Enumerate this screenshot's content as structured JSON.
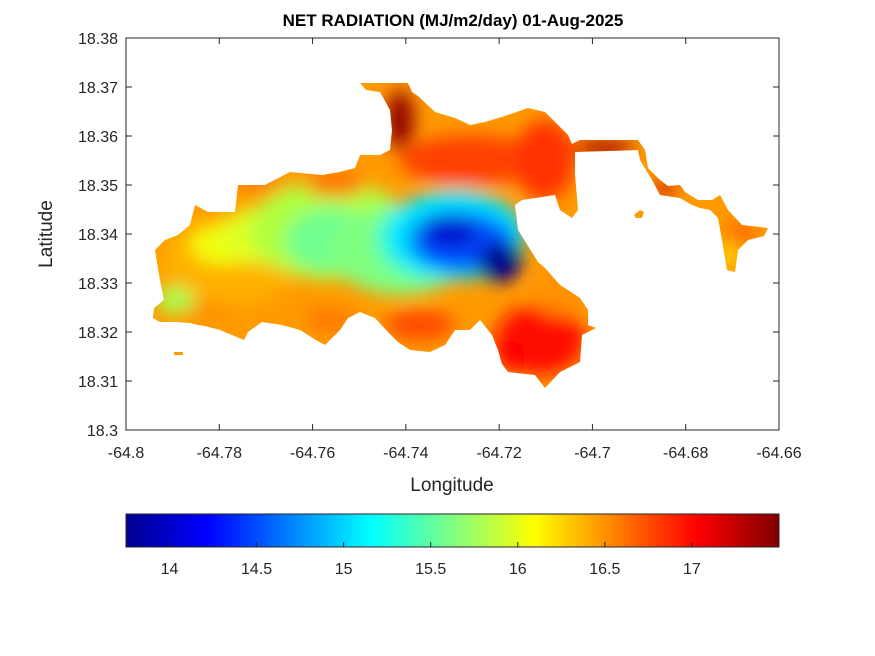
{
  "chart_data": {
    "type": "heatmap",
    "title": "NET RADIATION (MJ/m2/day) 01-Aug-2025",
    "xlabel": "Longitude",
    "ylabel": "Latitude",
    "xlim": [
      -64.8,
      -64.66
    ],
    "ylim": [
      18.3,
      18.38
    ],
    "xticks": [
      -64.8,
      -64.78,
      -64.76,
      -64.74,
      -64.72,
      -64.7,
      -64.68,
      -64.66
    ],
    "yticks": [
      18.3,
      18.31,
      18.32,
      18.33,
      18.34,
      18.35,
      18.36,
      18.37,
      18.38
    ],
    "colorbar": {
      "colormap": "jet",
      "range": [
        13.75,
        17.5
      ],
      "ticks": [
        14,
        14.5,
        15,
        15.5,
        16,
        16.5,
        17
      ],
      "placement": "bottom"
    },
    "hotspots": [
      {
        "lon": -64.72,
        "lat": 18.333,
        "value": 13.8
      },
      {
        "lon": -64.732,
        "lat": 18.341,
        "value": 14.1
      },
      {
        "lon": -64.742,
        "lat": 18.338,
        "value": 14.9
      },
      {
        "lon": -64.755,
        "lat": 18.334,
        "value": 15.3
      },
      {
        "lon": -64.763,
        "lat": 18.339,
        "value": 15.6
      },
      {
        "lon": -64.783,
        "lat": 18.331,
        "value": 15.8
      },
      {
        "lon": -64.732,
        "lat": 18.364,
        "value": 17.4
      },
      {
        "lon": -64.705,
        "lat": 18.357,
        "value": 17.5
      },
      {
        "lon": -64.67,
        "lat": 18.335,
        "value": 16.0
      }
    ]
  }
}
